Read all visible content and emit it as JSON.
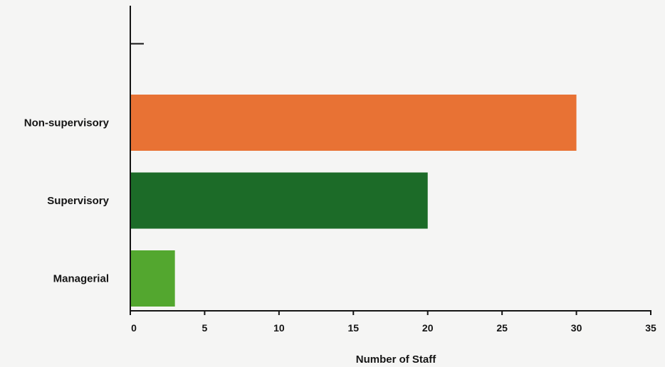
{
  "chart_data": {
    "type": "bar",
    "orientation": "horizontal",
    "categories": [
      "Managerial",
      "Supervisory",
      "Non-supervisory"
    ],
    "values": [
      3,
      20,
      30
    ],
    "colors": [
      "#53a72f",
      "#1c6b28",
      "#e87234"
    ],
    "xlabel": "Number of Staff",
    "ylabel": "",
    "xlim": [
      0,
      35
    ],
    "xticks": [
      0,
      5,
      10,
      15,
      20,
      25,
      30,
      35
    ],
    "grid": false,
    "legend": "none"
  },
  "colors": {
    "background": "#f5f5f4",
    "axis": "#141414",
    "text": "#141414"
  }
}
